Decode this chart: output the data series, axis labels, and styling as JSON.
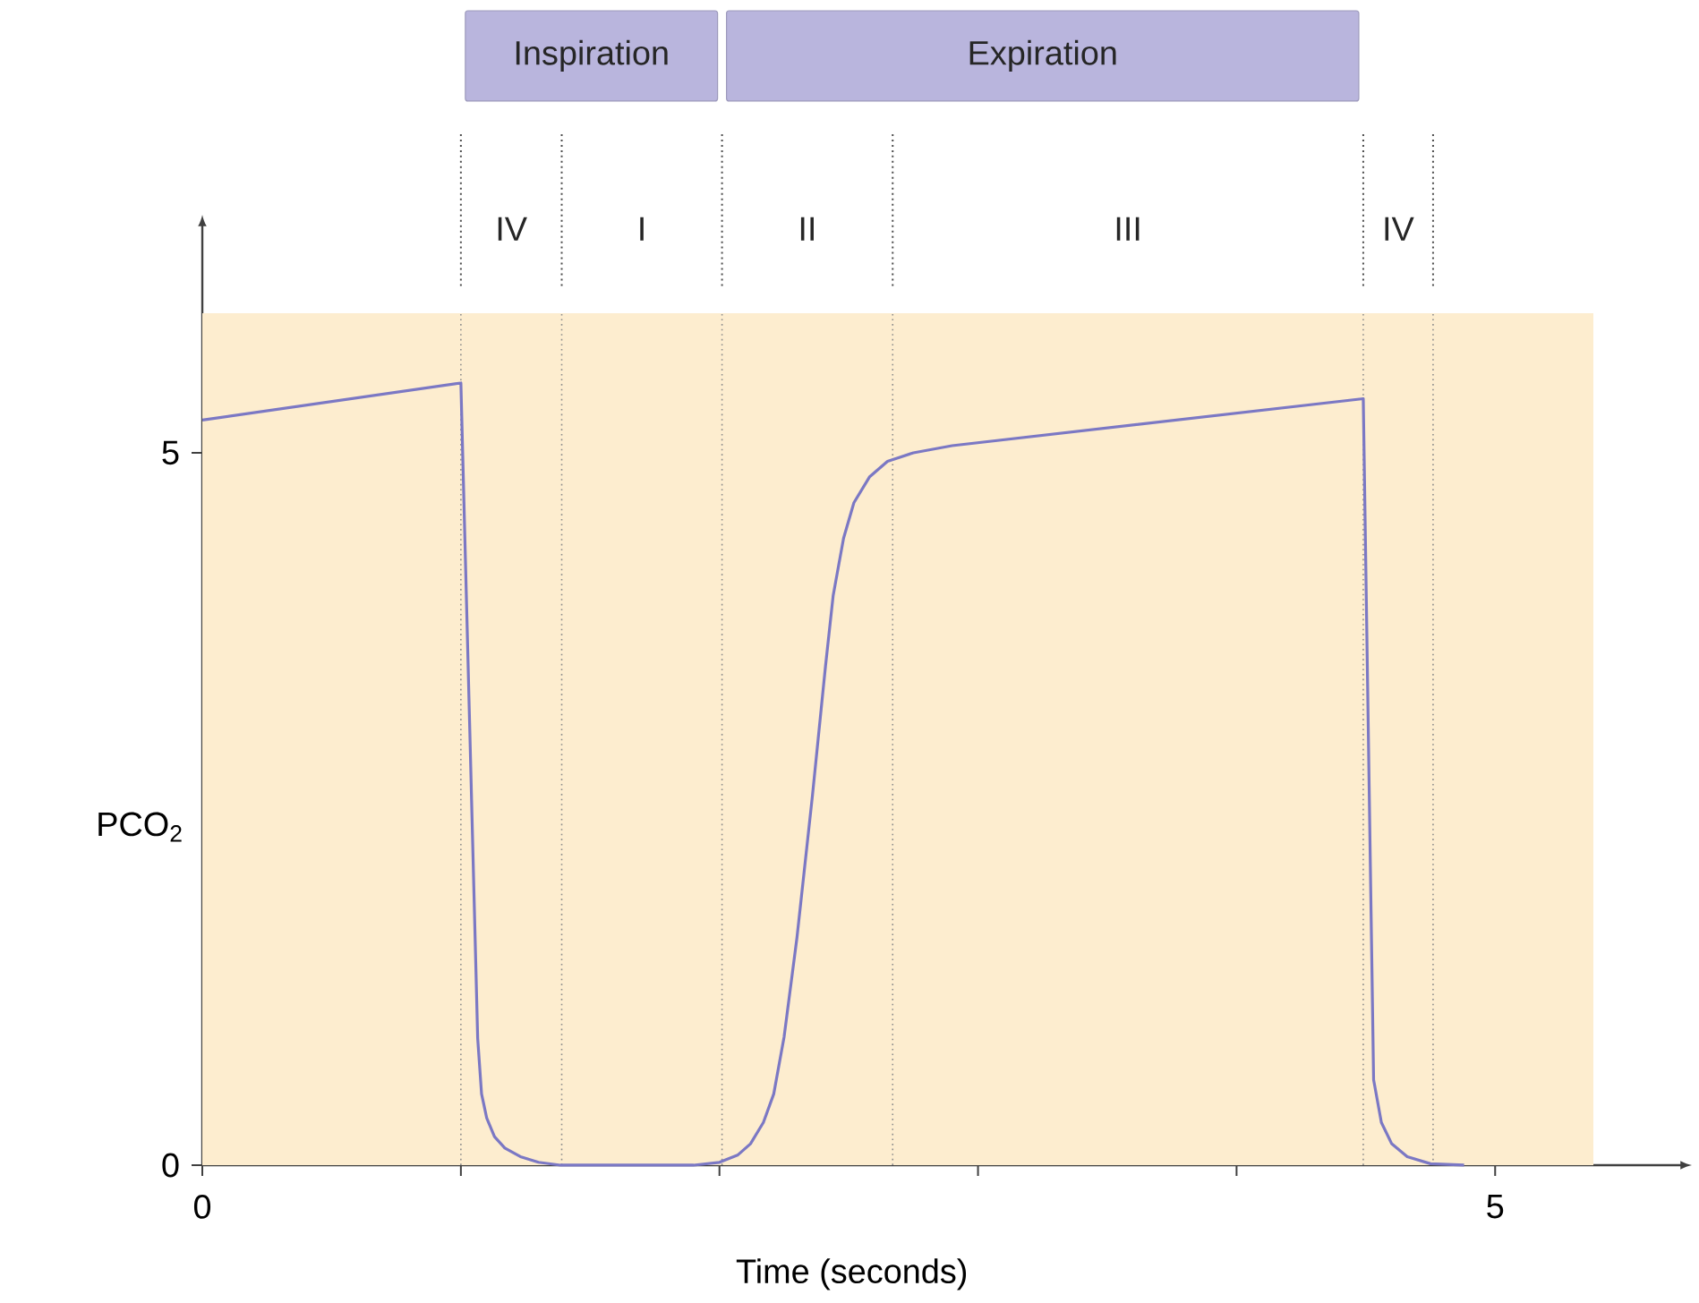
{
  "chart_data": {
    "type": "line",
    "xlabel": "Time (seconds)",
    "ylabel": "PCO$_{2}$",
    "xlim": [
      0,
      5.38
    ],
    "ylim": [
      0,
      5.98
    ],
    "xticks": [
      0,
      {
        "value": 1,
        "label": null
      },
      {
        "value": 2,
        "label": null
      },
      {
        "value": 3,
        "label": null
      },
      {
        "value": 4,
        "label": null
      },
      5
    ],
    "yticks": [
      0,
      5
    ],
    "series": [
      {
        "color": "#7b78c4",
        "x": [
          0,
          1.0,
          1.065,
          1.08,
          1.1,
          1.13,
          1.17,
          1.23,
          1.3,
          1.385,
          1.9,
          2.0,
          2.07,
          2.12,
          2.17,
          2.21,
          2.25,
          2.3,
          2.36,
          2.41,
          2.44,
          2.48,
          2.52,
          2.58,
          2.65,
          2.75,
          2.9,
          4.49,
          4.53,
          4.56,
          4.6,
          4.66,
          4.75,
          4.88
        ],
        "values": [
          5.23,
          5.49,
          0.89,
          0.5,
          0.33,
          0.2,
          0.12,
          0.06,
          0.02,
          0,
          0,
          0.02,
          0.07,
          0.15,
          0.3,
          0.5,
          0.9,
          1.6,
          2.6,
          3.5,
          4.0,
          4.4,
          4.65,
          4.83,
          4.94,
          5.0,
          5.05,
          5.38,
          0.6,
          0.3,
          0.15,
          0.06,
          0.01,
          0
        ]
      }
    ],
    "bands": [
      {
        "axis": "x",
        "from": 0,
        "to": 5.38,
        "color": "#fdedcf"
      }
    ],
    "ref_lines": [
      {
        "axis": "x",
        "value": 1.0,
        "line_style": "dotted"
      },
      {
        "axis": "x",
        "value": 1.39,
        "line_style": "dotted"
      },
      {
        "axis": "x",
        "value": 2.01,
        "line_style": "dotted"
      },
      {
        "axis": "x",
        "value": 2.67,
        "line_style": "dotted"
      },
      {
        "axis": "x",
        "value": 4.49,
        "line_style": "dotted"
      },
      {
        "axis": "x",
        "value": 4.76,
        "line_style": "dotted"
      }
    ],
    "annotations": [
      "Inspiration",
      "Expiration",
      "IV",
      "I",
      "II",
      "III",
      "IV"
    ]
  }
}
